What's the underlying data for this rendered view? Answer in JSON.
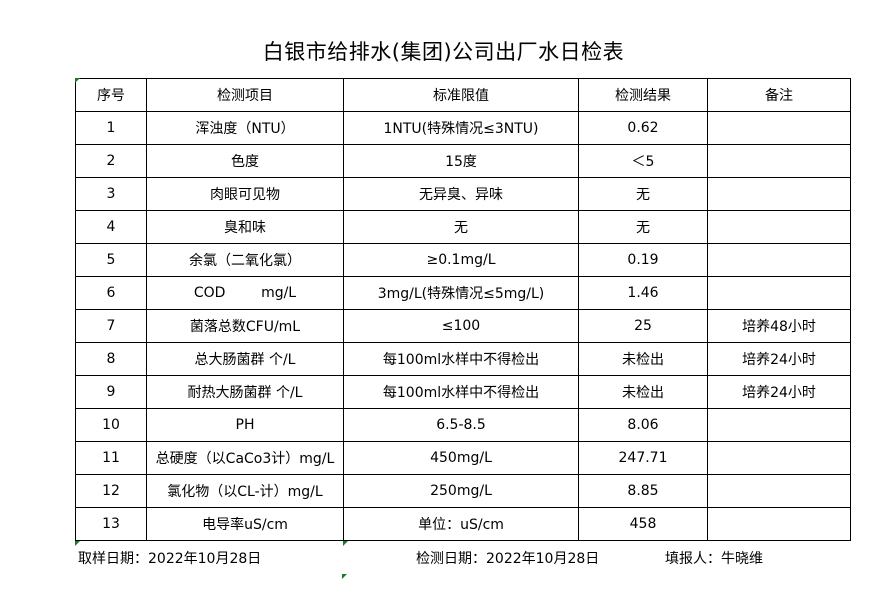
{
  "title": "白银市给排水(集团)公司出厂水日检表",
  "headers": [
    "序号",
    "检测项目",
    "标准限值",
    "检测结果",
    "备注"
  ],
  "rows": [
    [
      "1",
      "浑浊度（NTU）",
      "1NTU(特殊情况≤3NTU)",
      "0.62",
      ""
    ],
    [
      "2",
      "色度",
      "15度",
      "＜5",
      ""
    ],
    [
      "3",
      "肉眼可见物",
      "无异臭、异味",
      "无",
      ""
    ],
    [
      "4",
      "臭和味",
      "无",
      "无",
      ""
    ],
    [
      "5",
      "余氯（二氧化氯）",
      "≥0.1mg/L",
      "0.19",
      ""
    ],
    [
      "6",
      "COD        mg/L",
      "3mg/L(特殊情况≤5mg/L)",
      "1.46",
      ""
    ],
    [
      "7",
      "菌落总数CFU/mL",
      "≤100",
      "25",
      "培养48小时"
    ],
    [
      "8",
      "总大肠菌群 个/L",
      "每100ml水样中不得检出",
      "未检出",
      "培养24小时"
    ],
    [
      "9",
      "耐热大肠菌群 个/L",
      "每100ml水样中不得检出",
      "未检出",
      "培养24小时"
    ],
    [
      "10",
      "PH",
      "6.5-8.5",
      "8.06",
      ""
    ],
    [
      "11",
      "总硬度（以CaCo3计）mg/L",
      "450mg/L",
      "247.71",
      ""
    ],
    [
      "12",
      "氯化物（以CL-计）mg/L",
      "250mg/L",
      "8.85",
      ""
    ],
    [
      "13",
      "电导率uS/cm",
      "单位：uS/cm",
      "458",
      ""
    ]
  ],
  "footer": {
    "sampling_date": "取样日期：2022年10月28日",
    "test_date": "检测日期：2022年10月28日",
    "reporter": "填报人：牛晓维"
  }
}
